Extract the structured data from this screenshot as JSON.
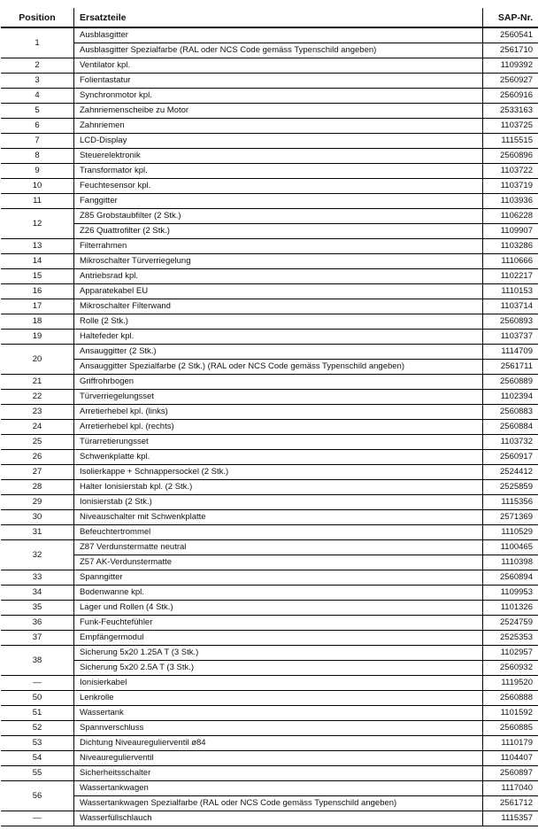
{
  "header": {
    "position": "Position",
    "parts": "Ersatzteile",
    "sap": "SAP-Nr."
  },
  "groups": [
    {
      "position": "1",
      "items": [
        [
          "Ausblasgitter",
          "2560541"
        ],
        [
          "Ausblasgitter Spezialfarbe (RAL oder NCS Code gemäss Typenschild angeben)",
          "2561710"
        ]
      ]
    },
    {
      "position": "2",
      "items": [
        [
          "Ventilator kpl.",
          "1109392"
        ]
      ]
    },
    {
      "position": "3",
      "items": [
        [
          "Folientastatur",
          "2560927"
        ]
      ]
    },
    {
      "position": "4",
      "items": [
        [
          "Synchronmotor kpl.",
          "2560916"
        ]
      ]
    },
    {
      "position": "5",
      "items": [
        [
          "Zahnriemenscheibe zu Motor",
          "2533163"
        ]
      ]
    },
    {
      "position": "6",
      "items": [
        [
          "Zahnriemen",
          "1103725"
        ]
      ]
    },
    {
      "position": "7",
      "items": [
        [
          "LCD-Display",
          "1115515"
        ]
      ]
    },
    {
      "position": "8",
      "items": [
        [
          "Steuerelektronik",
          "2560896"
        ]
      ]
    },
    {
      "position": "9",
      "items": [
        [
          "Transformator kpl.",
          "1103722"
        ]
      ]
    },
    {
      "position": "10",
      "items": [
        [
          "Feuchtesensor  kpl.",
          "1103719"
        ]
      ]
    },
    {
      "position": "11",
      "items": [
        [
          "Fanggitter",
          "1103936"
        ]
      ]
    },
    {
      "position": "12",
      "items": [
        [
          "Z85 Grobstaubfilter (2 Stk.)",
          "1106228"
        ],
        [
          "Z26 Quattrofilter (2 Stk.)",
          "1109907"
        ]
      ]
    },
    {
      "position": "13",
      "items": [
        [
          "Filterrahmen",
          "1103286"
        ]
      ]
    },
    {
      "position": "14",
      "items": [
        [
          "Mikroschalter  Türverriegelung",
          "1110666"
        ]
      ]
    },
    {
      "position": "15",
      "items": [
        [
          "Antriebsrad kpl.",
          "1102217"
        ]
      ]
    },
    {
      "position": "16",
      "items": [
        [
          "Apparatekabel EU",
          "1110153"
        ]
      ]
    },
    {
      "position": "17",
      "items": [
        [
          "Mikroschalter  Filterwand",
          "1103714"
        ]
      ]
    },
    {
      "position": "18",
      "items": [
        [
          "Rolle (2 Stk.)",
          "2560893"
        ]
      ]
    },
    {
      "position": "19",
      "items": [
        [
          "Haltefeder kpl.",
          "1103737"
        ]
      ]
    },
    {
      "position": "20",
      "items": [
        [
          "Ansauggitter (2 Stk.)",
          "1114709"
        ],
        [
          "Ansauggitter Spezialfarbe (2 Stk.) (RAL oder NCS Code gemäss Typenschild angeben)",
          "2561711"
        ]
      ]
    },
    {
      "position": "21",
      "items": [
        [
          "Griffrohrbogen",
          "2560889"
        ]
      ]
    },
    {
      "position": "22",
      "items": [
        [
          "Türverriegelungsset",
          "1102394"
        ]
      ]
    },
    {
      "position": "23",
      "items": [
        [
          "Arretierhebel kpl. (links)",
          "2560883"
        ]
      ]
    },
    {
      "position": "24",
      "items": [
        [
          "Arretierhebel kpl. (rechts)",
          "2560884"
        ]
      ]
    },
    {
      "position": "25",
      "items": [
        [
          "Türarretierungsset",
          "1103732"
        ]
      ]
    },
    {
      "position": "26",
      "items": [
        [
          "Schwenkplatte kpl.",
          "2560917"
        ]
      ]
    },
    {
      "position": "27",
      "items": [
        [
          "Isolierkappe + Schnappersockel (2 Stk.)",
          "2524412"
        ]
      ]
    },
    {
      "position": "28",
      "items": [
        [
          "Halter Ionisierstab kpl. (2 Stk.)",
          "2525859"
        ]
      ]
    },
    {
      "position": "29",
      "items": [
        [
          "Ionisierstab (2 Stk.)",
          "1115356"
        ]
      ]
    },
    {
      "position": "30",
      "items": [
        [
          "Niveauschalter  mit  Schwenkplatte",
          "2571369"
        ]
      ]
    },
    {
      "position": "31",
      "items": [
        [
          "Befeuchtertrommel",
          "1110529"
        ]
      ]
    },
    {
      "position": "32",
      "items": [
        [
          "Z87 Verdunstermatte neutral",
          "1100465"
        ],
        [
          "Z57 AK-Verdunstermatte",
          "1110398"
        ]
      ]
    },
    {
      "position": "33",
      "items": [
        [
          "Spanngitter",
          "2560894"
        ]
      ]
    },
    {
      "position": "34",
      "items": [
        [
          "Bodenwanne kpl.",
          "1109953"
        ]
      ]
    },
    {
      "position": "35",
      "items": [
        [
          "Lager und Rollen (4 Stk.)",
          "1101326"
        ]
      ]
    },
    {
      "position": "36",
      "items": [
        [
          "Funk-Feuchtefühler",
          "2524759"
        ]
      ]
    },
    {
      "position": "37",
      "items": [
        [
          "Empfängermodul",
          "2525353"
        ]
      ]
    },
    {
      "position": "38",
      "items": [
        [
          "Sicherung 5x20 1.25A T (3 Stk.)",
          "1102957"
        ],
        [
          "Sicherung 5x20 2.5A T (3 Stk.)",
          "2560932"
        ]
      ]
    },
    {
      "position": "—",
      "items": [
        [
          "Ionisierkabel",
          "1119520"
        ]
      ]
    },
    {
      "position": "50",
      "items": [
        [
          "Lenkrolle",
          "2560888"
        ]
      ]
    },
    {
      "position": "51",
      "items": [
        [
          "Wassertank",
          "1101592"
        ]
      ]
    },
    {
      "position": "52",
      "items": [
        [
          "Spannverschluss",
          "2560885"
        ]
      ]
    },
    {
      "position": "53",
      "items": [
        [
          "Dichtung Niveauregulierventil ø84",
          "1110179"
        ]
      ]
    },
    {
      "position": "54",
      "items": [
        [
          "Niveauregulierventil",
          "1104407"
        ]
      ]
    },
    {
      "position": "55",
      "items": [
        [
          "Sicherheitsschalter",
          "2560897"
        ]
      ]
    },
    {
      "position": "56",
      "items": [
        [
          "Wassertankwagen",
          "1117040"
        ],
        [
          "Wassertankwagen Spezialfarbe (RAL oder NCS Code gemäss Typenschild angeben)",
          "2561712"
        ]
      ]
    },
    {
      "position": "—",
      "items": [
        [
          "Wasserfüllschlauch",
          "1115357"
        ]
      ]
    }
  ]
}
